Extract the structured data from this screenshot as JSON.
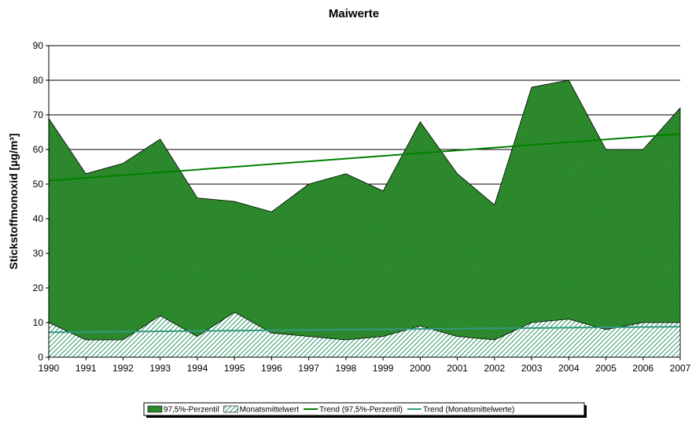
{
  "chart_data": {
    "type": "area",
    "title": "Maiwerte",
    "y_label": "Stickstoffmonoxid [µg/m³]",
    "x": [
      1990,
      1991,
      1992,
      1993,
      1994,
      1995,
      1996,
      1997,
      1998,
      1999,
      2000,
      2001,
      2002,
      2003,
      2004,
      2005,
      2006,
      2007
    ],
    "xlim": [
      1990,
      2007
    ],
    "xticks": [
      1990,
      1991,
      1992,
      1993,
      1994,
      1995,
      1996,
      1997,
      1998,
      1999,
      2000,
      2001,
      2002,
      2003,
      2004,
      2005,
      2006,
      2007
    ],
    "ylim": [
      0,
      90
    ],
    "yticks": [
      0,
      10,
      20,
      30,
      40,
      50,
      60,
      70,
      80,
      90
    ],
    "grid": true,
    "legend": "bottom",
    "series": [
      {
        "name": "97,5%-Perzentil",
        "color": "#339933",
        "values": [
          69,
          53,
          56,
          63,
          46,
          45,
          42,
          50,
          53,
          48,
          68,
          53,
          44,
          78,
          80,
          60,
          60,
          72
        ]
      },
      {
        "name": "Monatsmittelwert",
        "color": "#ffffff",
        "values": [
          10,
          5,
          5,
          12,
          6,
          13,
          7,
          6,
          5,
          6,
          9,
          6,
          5,
          10,
          11,
          8,
          10,
          10
        ]
      }
    ],
    "trends": [
      {
        "name": "Trend (97,5%-Perzentil)",
        "color": "#008000",
        "x": [
          1990,
          2007
        ],
        "values": [
          51,
          64.5
        ]
      },
      {
        "name": "Trend (Monatsmittelwerte)",
        "color": "#339980",
        "x": [
          1990,
          2007
        ],
        "values": [
          7.2,
          8.8
        ]
      }
    ]
  }
}
